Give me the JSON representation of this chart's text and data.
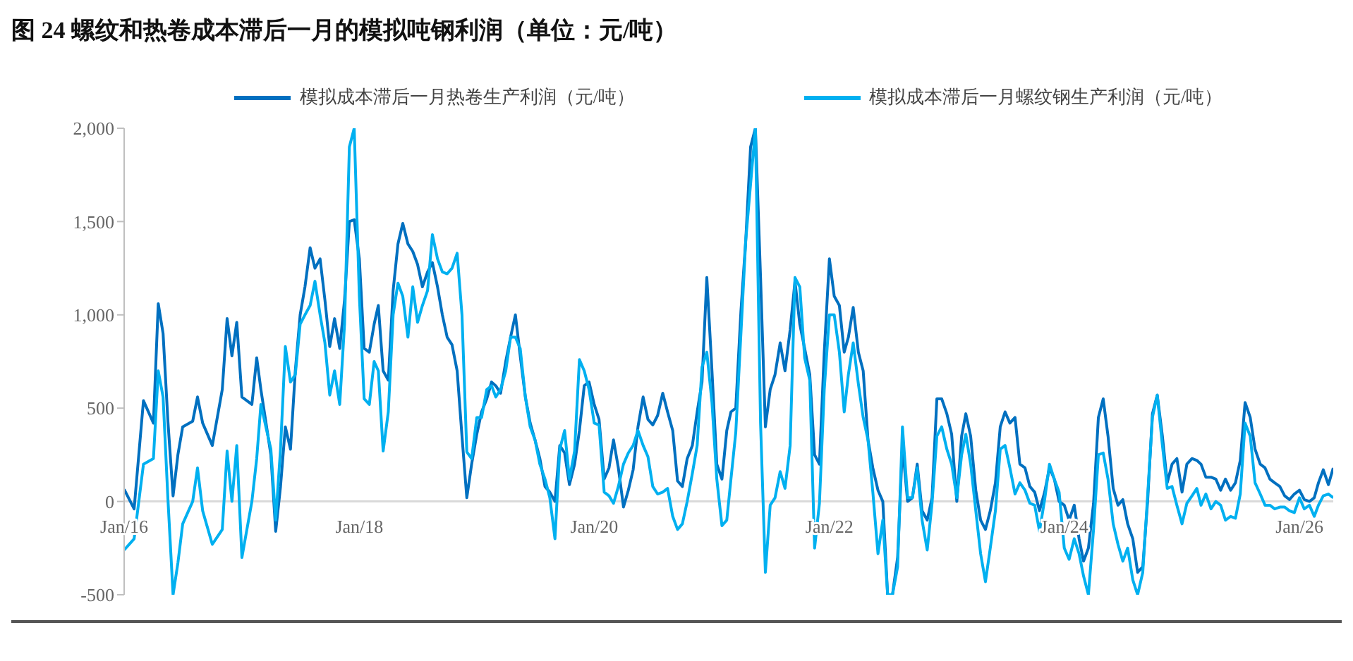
{
  "chart_data": {
    "type": "line",
    "title": "图 24 螺纹和热卷成本滞后一月的模拟吨钢利润（单位：元/吨）",
    "legend": "top",
    "x": [
      "2016-01-01",
      "2016-02-01",
      "2016-03-01",
      "2016-04-01",
      "2016-04-16",
      "2016-05-01",
      "2016-05-16",
      "2016-06-01",
      "2016-06-16",
      "2016-07-01",
      "2016-08-01",
      "2016-08-16",
      "2016-09-01",
      "2016-10-01",
      "2016-11-01",
      "2016-11-16",
      "2016-12-01",
      "2016-12-16",
      "2017-01-01",
      "2017-02-01",
      "2017-02-16",
      "2017-03-01",
      "2017-04-01",
      "2017-04-16",
      "2017-05-01",
      "2017-05-16",
      "2017-06-01",
      "2017-06-16",
      "2017-07-01",
      "2017-07-16",
      "2017-08-01",
      "2017-08-16",
      "2017-09-01",
      "2017-09-16",
      "2017-10-01",
      "2017-10-16",
      "2017-11-01",
      "2017-11-16",
      "2017-12-01",
      "2017-12-16",
      "2018-01-01",
      "2018-01-16",
      "2018-02-01",
      "2018-02-16",
      "2018-03-01",
      "2018-03-16",
      "2018-04-01",
      "2018-04-16",
      "2018-05-01",
      "2018-05-16",
      "2018-06-01",
      "2018-06-16",
      "2018-07-01",
      "2018-07-16",
      "2018-08-01",
      "2018-08-16",
      "2018-09-01",
      "2018-09-16",
      "2018-10-01",
      "2018-10-16",
      "2018-11-01",
      "2018-11-16",
      "2018-12-01",
      "2018-12-16",
      "2019-01-01",
      "2019-01-16",
      "2019-02-01",
      "2019-02-16",
      "2019-03-01",
      "2019-03-16",
      "2019-04-01",
      "2019-04-16",
      "2019-05-01",
      "2019-05-16",
      "2019-06-01",
      "2019-06-16",
      "2019-07-01",
      "2019-07-16",
      "2019-08-01",
      "2019-08-16",
      "2019-09-01",
      "2019-09-16",
      "2019-10-01",
      "2019-10-16",
      "2019-11-01",
      "2019-11-16",
      "2019-12-01",
      "2019-12-16",
      "2020-01-01",
      "2020-01-16",
      "2020-02-01",
      "2020-02-16",
      "2020-03-01",
      "2020-03-16",
      "2020-04-01",
      "2020-04-16",
      "2020-05-01",
      "2020-05-16",
      "2020-06-01",
      "2020-06-16",
      "2020-07-01",
      "2020-07-16",
      "2020-08-01",
      "2020-08-16",
      "2020-09-01",
      "2020-09-16",
      "2020-10-01",
      "2020-10-16",
      "2020-11-01",
      "2020-11-16",
      "2020-12-01",
      "2020-12-16",
      "2021-01-01",
      "2021-01-16",
      "2021-02-01",
      "2021-02-16",
      "2021-03-01",
      "2021-03-16",
      "2021-04-01",
      "2021-04-16",
      "2021-05-01",
      "2021-05-16",
      "2021-06-01",
      "2021-06-16",
      "2021-07-01",
      "2021-07-16",
      "2021-08-01",
      "2021-08-16",
      "2021-09-01",
      "2021-09-16",
      "2021-10-01",
      "2021-10-16",
      "2021-11-01",
      "2021-11-16",
      "2021-12-01",
      "2021-12-16",
      "2022-01-01",
      "2022-01-16",
      "2022-02-01",
      "2022-02-16",
      "2022-03-01",
      "2022-03-16",
      "2022-04-01",
      "2022-04-16",
      "2022-05-01",
      "2022-05-16",
      "2022-06-01",
      "2022-06-16",
      "2022-07-01",
      "2022-07-16",
      "2022-08-01",
      "2022-08-16",
      "2022-09-01",
      "2022-09-16",
      "2022-10-01",
      "2022-10-16",
      "2022-11-01",
      "2022-11-16",
      "2022-12-01",
      "2022-12-16",
      "2023-01-01",
      "2023-01-16",
      "2023-02-01",
      "2023-02-16",
      "2023-03-01",
      "2023-03-16",
      "2023-04-01",
      "2023-04-16",
      "2023-05-01",
      "2023-05-16",
      "2023-06-01",
      "2023-06-16",
      "2023-07-01",
      "2023-07-16",
      "2023-08-01",
      "2023-08-16",
      "2023-09-01",
      "2023-09-16",
      "2023-10-01",
      "2023-10-16",
      "2023-11-01",
      "2023-11-16",
      "2023-12-01",
      "2023-12-16",
      "2024-01-01",
      "2024-01-16",
      "2024-02-01",
      "2024-02-16",
      "2024-03-01",
      "2024-03-16",
      "2024-04-01",
      "2024-04-16",
      "2024-05-01",
      "2024-05-16",
      "2024-06-01",
      "2024-06-16",
      "2024-07-01",
      "2024-07-16",
      "2024-08-01",
      "2024-08-16",
      "2024-09-01",
      "2024-09-16",
      "2024-10-01",
      "2024-10-16",
      "2024-11-01",
      "2024-11-16",
      "2024-12-01",
      "2024-12-16",
      "2025-01-01",
      "2025-01-16",
      "2025-02-01",
      "2025-02-16",
      "2025-03-01",
      "2025-03-16",
      "2025-04-01",
      "2025-04-16",
      "2025-05-01",
      "2025-05-16",
      "2025-06-01",
      "2025-06-16",
      "2025-07-01",
      "2025-07-16",
      "2025-08-01",
      "2025-08-16",
      "2025-09-01",
      "2025-09-16",
      "2025-10-01",
      "2025-10-16",
      "2025-11-01",
      "2025-11-16",
      "2025-12-01",
      "2025-12-16",
      "2026-01-01",
      "2026-01-16",
      "2026-02-01",
      "2026-02-16",
      "2026-03-01",
      "2026-03-16",
      "2026-04-01",
      "2026-04-16"
    ],
    "series": [
      {
        "name": "模拟成本滞后一月热卷生产利润（元/吨）",
        "color": "#0070c0",
        "values": [
          65,
          -40,
          540,
          420,
          1060,
          900,
          430,
          30,
          250,
          400,
          430,
          560,
          420,
          300,
          600,
          980,
          780,
          960,
          560,
          520,
          770,
          600,
          250,
          -160,
          80,
          400,
          280,
          700,
          1000,
          1150,
          1360,
          1250,
          1300,
          1080,
          830,
          980,
          820,
          1080,
          1500,
          1510,
          1300,
          820,
          800,
          950,
          1050,
          700,
          650,
          1130,
          1380,
          1490,
          1380,
          1340,
          1270,
          1150,
          1230,
          1280,
          1150,
          1000,
          880,
          840,
          700,
          350,
          20,
          200,
          360,
          480,
          550,
          640,
          620,
          580,
          750,
          880,
          1000,
          780,
          560,
          420,
          330,
          230,
          80,
          50,
          0,
          300,
          260,
          90,
          200,
          380,
          620,
          640,
          520,
          440,
          120,
          180,
          330,
          180,
          -30,
          60,
          170,
          400,
          560,
          440,
          410,
          460,
          580,
          480,
          380,
          110,
          80,
          230,
          300,
          480,
          640,
          1200,
          700,
          200,
          120,
          380,
          480,
          500,
          1020,
          1400,
          1900,
          2000,
          1200,
          400,
          600,
          680,
          850,
          700,
          920,
          1180,
          950,
          820,
          680,
          250,
          200,
          800,
          1300,
          1100,
          1050,
          800,
          880,
          1040,
          800,
          700,
          330,
          180,
          60,
          0,
          -500,
          -500,
          -300,
          300,
          0,
          20,
          200,
          -50,
          -100,
          20,
          550,
          550,
          470,
          360,
          0,
          350,
          470,
          350,
          60,
          -100,
          -150,
          -50,
          100,
          400,
          480,
          420,
          450,
          200,
          180,
          80,
          50,
          -50,
          50,
          180,
          120,
          0,
          -20,
          -100,
          -20,
          -200,
          -320,
          -250,
          -10,
          450,
          550,
          350,
          70,
          -20,
          10,
          -120,
          -200,
          -380,
          -350,
          0,
          470,
          570,
          350,
          100,
          200,
          230,
          50,
          200,
          230,
          220,
          200,
          130,
          130,
          120,
          60,
          120,
          60,
          100,
          220,
          530,
          450,
          280,
          200,
          180,
          120,
          100,
          80,
          30,
          10,
          40,
          60,
          10,
          0,
          20,
          100,
          170,
          90,
          180
        ]
      },
      {
        "name": "模拟成本滞后一月螺纹钢生产利润（元/吨）",
        "color": "#00b0f0",
        "values": [
          -260,
          -200,
          200,
          230,
          700,
          560,
          15,
          -500,
          -330,
          -120,
          0,
          180,
          -50,
          -230,
          -150,
          270,
          0,
          300,
          -300,
          0,
          230,
          520,
          280,
          -100,
          280,
          830,
          640,
          680,
          950,
          1000,
          1050,
          1180,
          1000,
          850,
          570,
          700,
          520,
          950,
          1900,
          2000,
          1100,
          550,
          520,
          750,
          700,
          270,
          480,
          1000,
          1170,
          1100,
          880,
          1150,
          960,
          1050,
          1130,
          1430,
          1300,
          1230,
          1220,
          1250,
          1330,
          1000,
          265,
          230,
          450,
          450,
          600,
          620,
          560,
          600,
          700,
          880,
          880,
          820,
          560,
          400,
          330,
          200,
          120,
          20,
          -200,
          280,
          380,
          120,
          270,
          760,
          700,
          600,
          420,
          410,
          50,
          30,
          -10,
          80,
          200,
          260,
          300,
          380,
          300,
          240,
          80,
          40,
          50,
          70,
          -80,
          -150,
          -120,
          0,
          150,
          300,
          720,
          800,
          530,
          120,
          -130,
          -100,
          120,
          370,
          900,
          1400,
          1700,
          2000,
          420,
          -380,
          -20,
          20,
          160,
          70,
          300,
          1200,
          1150,
          770,
          650,
          -250,
          -10,
          600,
          1000,
          1000,
          800,
          480,
          680,
          850,
          630,
          450,
          330,
          50,
          -280,
          -100,
          -500,
          -500,
          -350,
          400,
          20,
          20,
          180,
          -100,
          -260,
          -10,
          350,
          400,
          280,
          200,
          20,
          250,
          360,
          200,
          -50,
          -280,
          -430,
          -250,
          -50,
          280,
          300,
          180,
          40,
          100,
          60,
          -10,
          -20,
          -160,
          10,
          200,
          120,
          50,
          -250,
          -310,
          -200,
          -280,
          -400,
          -500,
          -150,
          250,
          260,
          120,
          -120,
          -230,
          -320,
          -250,
          -420,
          -500,
          -380,
          30,
          450,
          570,
          300,
          70,
          80,
          -20,
          -120,
          -10,
          30,
          70,
          -20,
          40,
          -40,
          0,
          -20,
          -100,
          -80,
          -90,
          40,
          420,
          350,
          100,
          40,
          -20,
          -20,
          -40,
          -30,
          -30,
          -50,
          -60,
          20,
          -40,
          -20,
          -80,
          -20,
          30,
          40,
          20
        ]
      }
    ],
    "xlim": [
      "2016-01-01",
      "2026-04-16"
    ],
    "xticks": [
      {
        "value": "2016-01-01",
        "label": "Jan/16"
      },
      {
        "value": "2018-01-01",
        "label": "Jan/18"
      },
      {
        "value": "2020-01-01",
        "label": "Jan/20"
      },
      {
        "value": "2022-01-01",
        "label": "Jan/22"
      },
      {
        "value": "2024-01-01",
        "label": "Jan/24"
      },
      {
        "value": "2026-01-01",
        "label": "Jan/26"
      }
    ],
    "ylim": [
      -500,
      2000
    ],
    "yticks": [
      -500,
      0,
      500,
      {
        "value": 1000,
        "label": "1,000"
      },
      {
        "value": 1500,
        "label": "1,500"
      },
      {
        "value": 2000,
        "label": "2,000"
      }
    ]
  }
}
